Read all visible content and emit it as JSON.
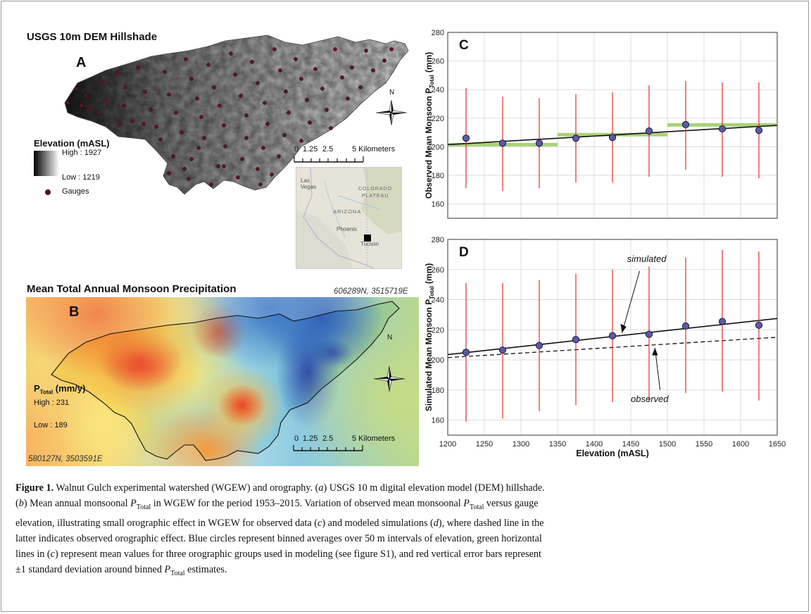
{
  "panel_a": {
    "title": "USGS 10m DEM Hillshade",
    "letter": "A",
    "legend": {
      "title": "Elevation (mASL)",
      "high": "High : 1927",
      "low": "Low : 1219",
      "gauges": "Gauges"
    },
    "scale": {
      "ticks": [
        "0",
        "1.25",
        "2.5"
      ],
      "end": "5 Kilometers"
    },
    "north": "N",
    "inset_labels": {
      "las_vegas": "Las\nVegas",
      "colorado": "COLORADO",
      "plateau": "PLATEAU",
      "arizona": "ARIZONA",
      "phoenix": "Phoenix",
      "tucson": "Tucson"
    }
  },
  "panel_b": {
    "title": "Mean Total Annual Monsoon Precipitation",
    "letter": "B",
    "coord_top": "606289N, 3515719E",
    "coord_bottom": "580127N, 3503591E",
    "legend": {
      "title_main": "P",
      "title_sub": "Total",
      "title_unit": " (mm/y)",
      "high": "High : 231",
      "low": "Low : 189"
    },
    "scale": {
      "ticks": [
        "0",
        "1.25",
        "2.5"
      ],
      "end": "5 Kilometers"
    },
    "north": "N"
  },
  "chart_data": [
    {
      "type": "scatter",
      "panel": "C",
      "ylabel": "Observed Mean Monsoon P_Total (mm)",
      "ylim": [
        150,
        280
      ],
      "xlim": [
        1200,
        1650
      ],
      "yticks": [
        160,
        180,
        200,
        220,
        240,
        260,
        280
      ],
      "x": [
        1225,
        1275,
        1325,
        1375,
        1425,
        1475,
        1525,
        1575,
        1625
      ],
      "y": [
        206,
        202.5,
        202.5,
        206,
        206.5,
        211,
        215.5,
        212.5,
        211.5
      ],
      "err_low": [
        171,
        169,
        171,
        175,
        175,
        179,
        184,
        179,
        178
      ],
      "err_high": [
        241,
        235,
        234,
        237,
        238,
        243,
        246,
        245,
        245
      ],
      "fit": {
        "x": [
          1200,
          1650
        ],
        "y": [
          201.5,
          215
        ]
      },
      "groups": [
        {
          "x": [
            1200,
            1350
          ],
          "y": 201.5
        },
        {
          "x": [
            1350,
            1500
          ],
          "y": 208.5
        },
        {
          "x": [
            1500,
            1650
          ],
          "y": 215.3
        }
      ],
      "grid": true
    },
    {
      "type": "scatter",
      "panel": "D",
      "ylabel": "Simulated Mean Monsoon P_Total (mm)",
      "xlabel": "Elevation (mASL)",
      "ylim": [
        150,
        280
      ],
      "xlim": [
        1200,
        1650
      ],
      "yticks": [
        160,
        180,
        200,
        220,
        240,
        260,
        280
      ],
      "xticks": [
        1200,
        1250,
        1300,
        1350,
        1400,
        1450,
        1500,
        1550,
        1600,
        1650
      ],
      "x": [
        1225,
        1275,
        1325,
        1375,
        1425,
        1475,
        1525,
        1575,
        1625
      ],
      "y": [
        205,
        206.5,
        209.5,
        213.5,
        216,
        217,
        222.5,
        225.5,
        223
      ],
      "err_low": [
        159,
        161,
        166,
        170,
        172,
        172,
        178,
        179,
        173
      ],
      "err_high": [
        251,
        251,
        253,
        257,
        260,
        262,
        268,
        273,
        272
      ],
      "simulated_fit": {
        "x": [
          1200,
          1650
        ],
        "y": [
          203.5,
          227.5
        ]
      },
      "observed_fit": {
        "x": [
          1200,
          1650
        ],
        "y": [
          201.5,
          215
        ]
      },
      "annotations": [
        "simulated",
        "observed"
      ],
      "grid": true
    }
  ],
  "caption": {
    "label": "Figure 1.",
    "line1": " Walnut Gulch experimental watershed (WGEW) and orography. (",
    "a": "a",
    "line1b": ") USGS 10 m digital elevation model (DEM) hillshade.",
    "b": "b",
    "line2": ") Mean annual monsoonal ",
    "ptotal": "P",
    "ptotal_sub": "Total",
    "line2b": " in WGEW for the period 1953–2015. Variation of observed mean monsoonal ",
    "line2c": " versus gauge",
    "line3": "elevation, illustrating small orographic effect in WGEW for observed data (",
    "c": "c",
    "line3b": ") and modeled simulations (",
    "d": "d",
    "line3c": "), where dashed line in the",
    "line4": "latter indicates observed orographic effect. Blue circles represent binned averages over 50 m intervals of elevation, green horizontal",
    "line5a": "lines in (",
    "line5b": ") represent mean values for three orographic groups used in modeling (see figure S1), and red vertical error bars represent",
    "line6a": "±1 standard deviation around binned ",
    "line6b": " estimates."
  }
}
